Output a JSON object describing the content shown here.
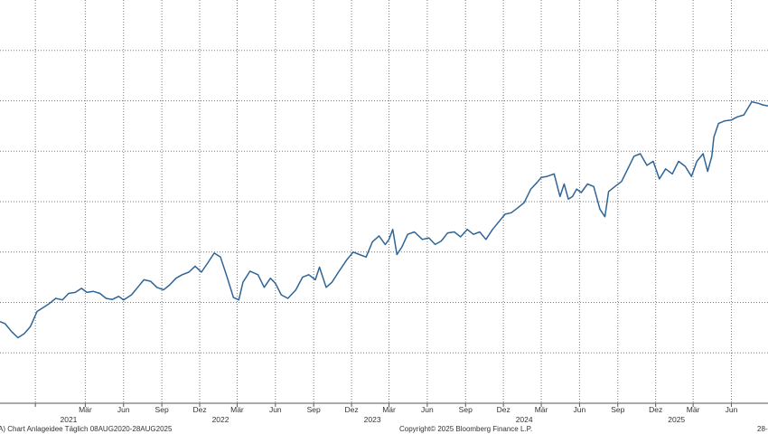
{
  "chart_data": {
    "type": "line",
    "grid": true,
    "legend": "none",
    "x_range": [
      "2020-08-08",
      "2025-08-28"
    ],
    "y_range": [
      0,
      8
    ],
    "colors": {
      "line": "#2f6596",
      "grid": "#7a7a7a",
      "background": "#ffffff"
    },
    "x_ticks": [
      {
        "date": "2020-08-01",
        "label": ""
      },
      {
        "date": "2020-11-01",
        "label": ""
      },
      {
        "date": "2021-03-01",
        "label": "Mär"
      },
      {
        "date": "2021-06-01",
        "label": "Jun"
      },
      {
        "date": "2021-09-01",
        "label": "Sep"
      },
      {
        "date": "2021-12-01",
        "label": "Dez"
      },
      {
        "date": "2022-03-01",
        "label": "Mär"
      },
      {
        "date": "2022-06-01",
        "label": "Jun"
      },
      {
        "date": "2022-09-01",
        "label": "Sep"
      },
      {
        "date": "2022-12-01",
        "label": "Dez"
      },
      {
        "date": "2023-03-01",
        "label": "Mär"
      },
      {
        "date": "2023-06-01",
        "label": "Jun"
      },
      {
        "date": "2023-09-01",
        "label": "Sep"
      },
      {
        "date": "2023-12-01",
        "label": "Dez"
      },
      {
        "date": "2024-03-01",
        "label": "Mär"
      },
      {
        "date": "2024-06-01",
        "label": "Jun"
      },
      {
        "date": "2024-09-01",
        "label": "Sep"
      },
      {
        "date": "2024-12-01",
        "label": "Dez"
      },
      {
        "date": "2025-03-01",
        "label": "Mär"
      },
      {
        "date": "2025-06-01",
        "label": "Jun"
      }
    ],
    "year_labels": [
      {
        "date": "2021-01-20",
        "label": "2021"
      },
      {
        "date": "2022-01-20",
        "label": "2022"
      },
      {
        "date": "2023-01-20",
        "label": "2023"
      },
      {
        "date": "2024-01-20",
        "label": "2024"
      },
      {
        "date": "2025-01-20",
        "label": "2025"
      }
    ],
    "y_gridlines": [
      1,
      2,
      3,
      4,
      5,
      6,
      7
    ],
    "series": [
      {
        "points": [
          [
            "2020-08-08",
            1.62
          ],
          [
            "2020-08-20",
            1.58
          ],
          [
            "2020-09-05",
            1.42
          ],
          [
            "2020-09-20",
            1.3
          ],
          [
            "2020-10-05",
            1.38
          ],
          [
            "2020-10-20",
            1.52
          ],
          [
            "2020-11-05",
            1.82
          ],
          [
            "2020-11-20",
            1.9
          ],
          [
            "2020-12-05",
            1.98
          ],
          [
            "2020-12-20",
            2.08
          ],
          [
            "2021-01-05",
            2.05
          ],
          [
            "2021-01-20",
            2.18
          ],
          [
            "2021-02-05",
            2.2
          ],
          [
            "2021-02-20",
            2.28
          ],
          [
            "2021-03-05",
            2.2
          ],
          [
            "2021-03-20",
            2.22
          ],
          [
            "2021-04-05",
            2.18
          ],
          [
            "2021-04-20",
            2.08
          ],
          [
            "2021-05-05",
            2.06
          ],
          [
            "2021-05-20",
            2.12
          ],
          [
            "2021-06-01",
            2.05
          ],
          [
            "2021-06-20",
            2.15
          ],
          [
            "2021-07-05",
            2.3
          ],
          [
            "2021-07-20",
            2.45
          ],
          [
            "2021-08-05",
            2.42
          ],
          [
            "2021-08-20",
            2.3
          ],
          [
            "2021-09-05",
            2.25
          ],
          [
            "2021-09-20",
            2.35
          ],
          [
            "2021-10-05",
            2.48
          ],
          [
            "2021-10-20",
            2.55
          ],
          [
            "2021-11-05",
            2.6
          ],
          [
            "2021-11-20",
            2.72
          ],
          [
            "2021-12-05",
            2.6
          ],
          [
            "2021-12-20",
            2.78
          ],
          [
            "2022-01-05",
            2.98
          ],
          [
            "2022-01-20",
            2.9
          ],
          [
            "2022-02-05",
            2.5
          ],
          [
            "2022-02-20",
            2.1
          ],
          [
            "2022-03-05",
            2.05
          ],
          [
            "2022-03-15",
            2.4
          ],
          [
            "2022-04-01",
            2.62
          ],
          [
            "2022-04-20",
            2.55
          ],
          [
            "2022-05-05",
            2.3
          ],
          [
            "2022-05-20",
            2.48
          ],
          [
            "2022-06-01",
            2.38
          ],
          [
            "2022-06-15",
            2.15
          ],
          [
            "2022-07-01",
            2.08
          ],
          [
            "2022-07-20",
            2.25
          ],
          [
            "2022-08-05",
            2.5
          ],
          [
            "2022-08-20",
            2.55
          ],
          [
            "2022-09-05",
            2.45
          ],
          [
            "2022-09-15",
            2.7
          ],
          [
            "2022-10-01",
            2.3
          ],
          [
            "2022-10-15",
            2.4
          ],
          [
            "2022-11-01",
            2.62
          ],
          [
            "2022-11-20",
            2.85
          ],
          [
            "2022-12-05",
            3.0
          ],
          [
            "2022-12-20",
            2.95
          ],
          [
            "2023-01-05",
            2.9
          ],
          [
            "2023-01-20",
            3.2
          ],
          [
            "2023-02-05",
            3.32
          ],
          [
            "2023-02-20",
            3.15
          ],
          [
            "2023-03-01",
            3.25
          ],
          [
            "2023-03-10",
            3.45
          ],
          [
            "2023-03-20",
            2.95
          ],
          [
            "2023-04-01",
            3.1
          ],
          [
            "2023-04-15",
            3.35
          ],
          [
            "2023-05-01",
            3.4
          ],
          [
            "2023-05-20",
            3.25
          ],
          [
            "2023-06-05",
            3.28
          ],
          [
            "2023-06-20",
            3.15
          ],
          [
            "2023-07-05",
            3.22
          ],
          [
            "2023-07-20",
            3.38
          ],
          [
            "2023-08-05",
            3.4
          ],
          [
            "2023-08-20",
            3.3
          ],
          [
            "2023-09-05",
            3.45
          ],
          [
            "2023-09-20",
            3.35
          ],
          [
            "2023-10-05",
            3.4
          ],
          [
            "2023-10-20",
            3.25
          ],
          [
            "2023-11-05",
            3.45
          ],
          [
            "2023-11-20",
            3.6
          ],
          [
            "2023-12-05",
            3.75
          ],
          [
            "2023-12-20",
            3.78
          ],
          [
            "2024-01-05",
            3.88
          ],
          [
            "2024-01-20",
            3.98
          ],
          [
            "2024-02-05",
            4.25
          ],
          [
            "2024-02-20",
            4.38
          ],
          [
            "2024-03-01",
            4.48
          ],
          [
            "2024-03-15",
            4.5
          ],
          [
            "2024-04-01",
            4.55
          ],
          [
            "2024-04-15",
            4.1
          ],
          [
            "2024-04-25",
            4.35
          ],
          [
            "2024-05-05",
            4.05
          ],
          [
            "2024-05-15",
            4.1
          ],
          [
            "2024-05-25",
            4.25
          ],
          [
            "2024-06-05",
            4.18
          ],
          [
            "2024-06-20",
            4.35
          ],
          [
            "2024-07-05",
            4.3
          ],
          [
            "2024-07-20",
            3.85
          ],
          [
            "2024-08-01",
            3.7
          ],
          [
            "2024-08-10",
            4.2
          ],
          [
            "2024-08-25",
            4.3
          ],
          [
            "2024-09-10",
            4.4
          ],
          [
            "2024-09-25",
            4.65
          ],
          [
            "2024-10-10",
            4.9
          ],
          [
            "2024-10-25",
            4.95
          ],
          [
            "2024-11-10",
            4.72
          ],
          [
            "2024-11-25",
            4.8
          ],
          [
            "2024-12-10",
            4.45
          ],
          [
            "2024-12-25",
            4.65
          ],
          [
            "2025-01-10",
            4.55
          ],
          [
            "2025-01-25",
            4.8
          ],
          [
            "2025-02-10",
            4.7
          ],
          [
            "2025-02-25",
            4.5
          ],
          [
            "2025-03-10",
            4.8
          ],
          [
            "2025-03-25",
            4.95
          ],
          [
            "2025-04-05",
            4.6
          ],
          [
            "2025-04-15",
            4.9
          ],
          [
            "2025-04-20",
            5.28
          ],
          [
            "2025-05-01",
            5.55
          ],
          [
            "2025-05-15",
            5.6
          ],
          [
            "2025-06-01",
            5.62
          ],
          [
            "2025-06-15",
            5.68
          ],
          [
            "2025-07-01",
            5.72
          ],
          [
            "2025-07-20",
            5.98
          ],
          [
            "2025-08-05",
            5.95
          ],
          [
            "2025-08-15",
            5.92
          ],
          [
            "2025-08-28",
            5.9
          ]
        ]
      }
    ]
  },
  "footer": {
    "left": "A) Chart Anlageidee  Täglich 08AUG2020-28AUG2025",
    "center": "Copyright© 2025 Bloomberg Finance L.P.",
    "right": "28-"
  }
}
